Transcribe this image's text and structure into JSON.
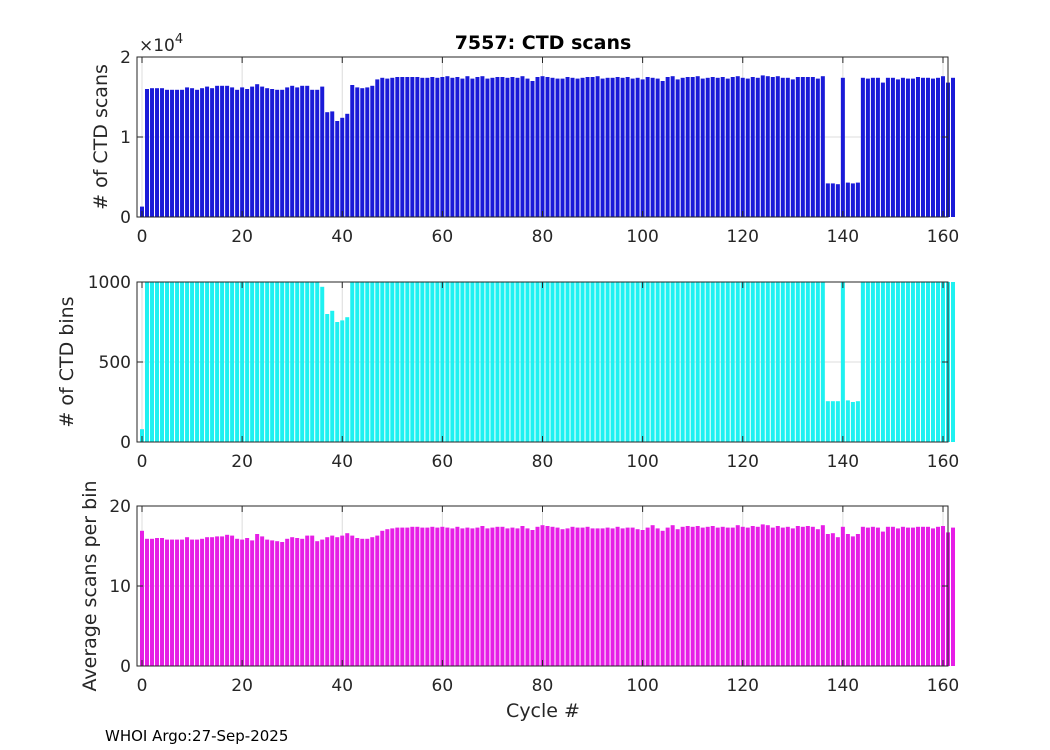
{
  "chart_data": [
    {
      "type": "bar",
      "title": "7557: CTD scans",
      "xlabel": "",
      "ylabel": "# of CTD scans",
      "exponent_label": "×10",
      "exponent_power": "4",
      "xlim": [
        -1,
        161
      ],
      "ylim": [
        0,
        20000
      ],
      "xticks": [
        "0",
        "20",
        "40",
        "60",
        "80",
        "100",
        "120",
        "140",
        "160"
      ],
      "yticks": [
        "0",
        "1",
        "2"
      ],
      "ytick_values": [
        0,
        10000,
        20000
      ],
      "color": "#1a1ad8",
      "grid": true,
      "x_start": 0,
      "values": [
        1300,
        16000,
        16100,
        16100,
        16100,
        15900,
        15900,
        15900,
        15900,
        16200,
        16100,
        15900,
        16100,
        16300,
        16100,
        16400,
        16400,
        16400,
        16200,
        15900,
        16200,
        16000,
        16300,
        16600,
        16300,
        16100,
        16000,
        15900,
        15900,
        16200,
        16400,
        16200,
        16400,
        16400,
        15900,
        15900,
        16300,
        13100,
        13200,
        12000,
        12400,
        12900,
        16500,
        16200,
        16100,
        16200,
        16400,
        17200,
        17400,
        17300,
        17400,
        17500,
        17500,
        17500,
        17500,
        17500,
        17400,
        17400,
        17500,
        17400,
        17500,
        17600,
        17400,
        17500,
        17300,
        17600,
        17300,
        17500,
        17600,
        17300,
        17400,
        17500,
        17500,
        17400,
        17500,
        17400,
        17600,
        17300,
        17000,
        17500,
        17600,
        17500,
        17400,
        17300,
        17300,
        17500,
        17400,
        17300,
        17400,
        17500,
        17500,
        17600,
        17300,
        17400,
        17400,
        17500,
        17400,
        17500,
        17300,
        17400,
        17200,
        17500,
        17400,
        17300,
        17000,
        17500,
        17600,
        17200,
        17400,
        17500,
        17500,
        17600,
        17300,
        17400,
        17500,
        17400,
        17500,
        17300,
        17500,
        17600,
        17400,
        17300,
        17500,
        17400,
        17700,
        17600,
        17500,
        17600,
        17400,
        17400,
        17200,
        17500,
        17500,
        17500,
        17500,
        17300,
        17600,
        4200,
        4200,
        4100,
        17400,
        4300,
        4200,
        4300,
        17400,
        17300,
        17400,
        17400,
        16800,
        17400,
        17400,
        17200,
        17400,
        17300,
        17300,
        17500,
        17400,
        17400,
        17300,
        17400,
        17600,
        16800,
        17400
      ]
    },
    {
      "type": "bar",
      "title": "",
      "xlabel": "",
      "ylabel": "# of CTD bins",
      "xlim": [
        -1,
        161
      ],
      "ylim": [
        0,
        1000
      ],
      "xticks": [
        "0",
        "20",
        "40",
        "60",
        "80",
        "100",
        "120",
        "140",
        "160"
      ],
      "yticks": [
        "0",
        "500",
        "1000"
      ],
      "ytick_values": [
        0,
        500,
        1000
      ],
      "color": "#1ff1f1",
      "grid": true,
      "x_start": 0,
      "values": [
        80,
        1000,
        1000,
        1000,
        1000,
        1000,
        1000,
        1000,
        1000,
        1000,
        1000,
        1000,
        1000,
        1000,
        1000,
        1000,
        1000,
        1000,
        1000,
        1000,
        1000,
        1000,
        1000,
        1000,
        1000,
        1000,
        1000,
        1000,
        1000,
        1000,
        1000,
        1000,
        1000,
        1000,
        1000,
        1000,
        970,
        800,
        820,
        750,
        760,
        780,
        1000,
        1000,
        1000,
        1000,
        1000,
        1000,
        1000,
        1000,
        1000,
        1000,
        1000,
        1000,
        1000,
        1000,
        1000,
        1000,
        1000,
        1000,
        1000,
        1000,
        1000,
        1000,
        1000,
        1000,
        1000,
        1000,
        1000,
        1000,
        1000,
        1000,
        1000,
        1000,
        1000,
        1000,
        1000,
        1000,
        1000,
        1000,
        1000,
        1000,
        1000,
        1000,
        1000,
        1000,
        1000,
        1000,
        1000,
        1000,
        1000,
        1000,
        1000,
        1000,
        1000,
        1000,
        1000,
        1000,
        1000,
        1000,
        1000,
        1000,
        1000,
        1000,
        1000,
        1000,
        1000,
        1000,
        1000,
        1000,
        1000,
        1000,
        1000,
        1000,
        1000,
        1000,
        1000,
        1000,
        1000,
        1000,
        1000,
        1000,
        1000,
        1000,
        1000,
        1000,
        1000,
        1000,
        1000,
        1000,
        1000,
        1000,
        1000,
        1000,
        1000,
        1000,
        1000,
        255,
        255,
        255,
        1000,
        260,
        250,
        255,
        1000,
        1000,
        1000,
        1000,
        1000,
        1000,
        1000,
        1000,
        1000,
        1000,
        1000,
        1000,
        1000,
        1000,
        1000,
        1000,
        1000,
        1000,
        1000
      ]
    },
    {
      "type": "bar",
      "title": "",
      "xlabel": "Cycle #",
      "ylabel": "Average scans per bin",
      "xlim": [
        -1,
        161
      ],
      "ylim": [
        0,
        20
      ],
      "xticks": [
        "0",
        "20",
        "40",
        "60",
        "80",
        "100",
        "120",
        "140",
        "160"
      ],
      "yticks": [
        "0",
        "10",
        "20"
      ],
      "ytick_values": [
        0,
        10,
        20
      ],
      "color": "#e61ee6",
      "grid": true,
      "x_start": 0,
      "values": [
        16.9,
        15.9,
        15.9,
        16.0,
        16.0,
        15.8,
        15.8,
        15.8,
        15.8,
        16.1,
        15.8,
        15.8,
        15.9,
        16.1,
        16.1,
        16.2,
        16.2,
        16.4,
        16.3,
        15.9,
        15.8,
        16.0,
        15.7,
        16.5,
        16.2,
        15.8,
        15.7,
        15.6,
        15.5,
        15.9,
        16.1,
        16.0,
        15.9,
        16.3,
        16.3,
        15.6,
        15.8,
        16.1,
        16.3,
        16.1,
        16.3,
        16.6,
        16.3,
        16.0,
        15.9,
        15.9,
        16.1,
        16.3,
        16.9,
        17.1,
        17.2,
        17.3,
        17.3,
        17.3,
        17.4,
        17.4,
        17.3,
        17.3,
        17.4,
        17.3,
        17.4,
        17.3,
        17.2,
        17.4,
        17.2,
        17.3,
        17.2,
        17.3,
        17.5,
        17.2,
        17.3,
        17.4,
        17.4,
        17.2,
        17.3,
        17.2,
        17.5,
        17.2,
        17.0,
        17.4,
        17.6,
        17.5,
        17.4,
        17.3,
        17.1,
        17.2,
        17.4,
        17.3,
        17.3,
        17.4,
        17.2,
        17.2,
        17.2,
        17.3,
        17.2,
        17.4,
        17.2,
        17.3,
        17.3,
        17.1,
        17.0,
        17.3,
        17.6,
        17.2,
        16.9,
        17.3,
        17.6,
        17.1,
        17.4,
        17.5,
        17.4,
        17.5,
        17.3,
        17.4,
        17.5,
        17.3,
        17.4,
        17.3,
        17.3,
        17.6,
        17.4,
        17.3,
        17.5,
        17.4,
        17.7,
        17.6,
        17.3,
        17.5,
        17.3,
        17.4,
        17.2,
        17.5,
        17.4,
        17.5,
        17.4,
        17.1,
        17.6,
        16.5,
        16.6,
        16.1,
        17.4,
        16.5,
        16.2,
        16.5,
        17.4,
        17.3,
        17.4,
        17.3,
        16.8,
        17.4,
        17.4,
        17.2,
        17.4,
        17.3,
        17.3,
        17.4,
        17.4,
        17.4,
        17.2,
        17.4,
        17.5,
        16.7,
        17.3
      ]
    }
  ],
  "footer": "WHOI Argo:27-Sep-2025"
}
